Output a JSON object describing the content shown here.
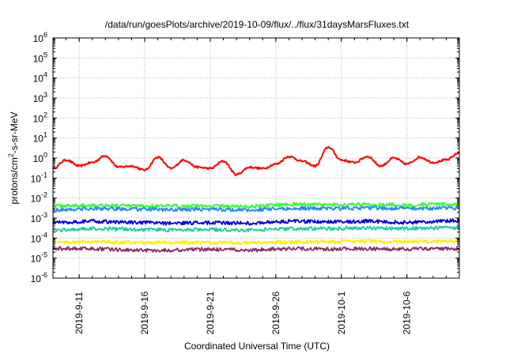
{
  "chart_data": {
    "type": "line",
    "title": "/data/run/goesPlots/archive/2019-10-09/flux/../flux/31daysMarsFluxes.txt",
    "xlabel": "Coordinated Universal Time (UTC)",
    "ylabel": "protons/cm²-s-sr-MeV",
    "ylabel_parts": {
      "prefix": "protons/cm",
      "sup": "2",
      "suffix": "-s-sr-MeV"
    },
    "yscale": "log",
    "ylim": [
      1e-06,
      1000000.0
    ],
    "xlim": [
      "2019-09-09",
      "2019-10-10"
    ],
    "grid": true,
    "y_ticks": [
      {
        "exp": -6,
        "base": "10",
        "sup": "-6"
      },
      {
        "exp": -5,
        "base": "10",
        "sup": "-5"
      },
      {
        "exp": -4,
        "base": "10",
        "sup": "-4"
      },
      {
        "exp": -3,
        "base": "10",
        "sup": "-3"
      },
      {
        "exp": -2,
        "base": "10",
        "sup": "-2"
      },
      {
        "exp": -1,
        "base": "10",
        "sup": "-1"
      },
      {
        "exp": 0,
        "base": "10",
        "sup": "0"
      },
      {
        "exp": 1,
        "base": "10",
        "sup": "1"
      },
      {
        "exp": 2,
        "base": "10",
        "sup": "2"
      },
      {
        "exp": 3,
        "base": "10",
        "sup": "3"
      },
      {
        "exp": 4,
        "base": "10",
        "sup": "4"
      },
      {
        "exp": 5,
        "base": "10",
        "sup": "5"
      },
      {
        "exp": 6,
        "base": "10",
        "sup": "6"
      }
    ],
    "x_ticks": [
      {
        "date": "2019-09-11",
        "label": "2019-9-11"
      },
      {
        "date": "2019-09-16",
        "label": "2019-9-16"
      },
      {
        "date": "2019-09-21",
        "label": "2019-9-21"
      },
      {
        "date": "2019-09-26",
        "label": "2019-9-26"
      },
      {
        "date": "2019-10-01",
        "label": "2019-10-1"
      },
      {
        "date": "2019-10-06",
        "label": "2019-10-6"
      }
    ],
    "series": [
      {
        "color": "#ff0000",
        "x": [
          "2019-09-09",
          "2019-09-10",
          "2019-09-11",
          "2019-09-12",
          "2019-09-13",
          "2019-09-14",
          "2019-09-15",
          "2019-09-16",
          "2019-09-17",
          "2019-09-18",
          "2019-09-19",
          "2019-09-20",
          "2019-09-21",
          "2019-09-22",
          "2019-09-23",
          "2019-09-24",
          "2019-09-25",
          "2019-09-26",
          "2019-09-27",
          "2019-09-28",
          "2019-09-29",
          "2019-09-30",
          "2019-10-01",
          "2019-10-02",
          "2019-10-03",
          "2019-10-04",
          "2019-10-05",
          "2019-10-06",
          "2019-10-07",
          "2019-10-08",
          "2019-10-09",
          "2019-10-10"
        ],
        "y": [
          0.3,
          0.8,
          0.4,
          0.6,
          1.3,
          0.35,
          0.4,
          0.25,
          1.1,
          0.3,
          0.8,
          0.35,
          0.3,
          0.7,
          0.15,
          0.35,
          0.3,
          0.5,
          1.2,
          0.7,
          0.4,
          3.5,
          0.8,
          0.6,
          1.2,
          0.4,
          1.0,
          0.5,
          1.1,
          0.6,
          0.8,
          1.8
        ]
      },
      {
        "color": "#33ff33",
        "x": [
          "2019-09-09",
          "2019-09-12",
          "2019-09-15",
          "2019-09-18",
          "2019-09-21",
          "2019-09-24",
          "2019-09-27",
          "2019-09-30",
          "2019-10-03",
          "2019-10-06",
          "2019-10-10"
        ],
        "y": [
          0.004,
          0.0045,
          0.004,
          0.004,
          0.0042,
          0.0038,
          0.005,
          0.0045,
          0.0048,
          0.0045,
          0.005
        ]
      },
      {
        "color": "#1e88ff",
        "x": [
          "2019-09-09",
          "2019-09-12",
          "2019-09-15",
          "2019-09-18",
          "2019-09-21",
          "2019-09-24",
          "2019-09-27",
          "2019-09-30",
          "2019-10-03",
          "2019-10-06",
          "2019-10-10"
        ],
        "y": [
          0.0025,
          0.003,
          0.0028,
          0.0026,
          0.0028,
          0.0025,
          0.003,
          0.003,
          0.0032,
          0.003,
          0.0032
        ]
      },
      {
        "color": "#0000dd",
        "x": [
          "2019-09-09",
          "2019-09-12",
          "2019-09-15",
          "2019-09-18",
          "2019-09-21",
          "2019-09-24",
          "2019-09-27",
          "2019-09-30",
          "2019-10-03",
          "2019-10-06",
          "2019-10-10"
        ],
        "y": [
          0.0006,
          0.0007,
          0.0006,
          0.00055,
          0.0006,
          0.00055,
          0.0007,
          0.00065,
          0.0007,
          0.0006,
          0.00075
        ]
      },
      {
        "color": "#20c9a0",
        "x": [
          "2019-09-09",
          "2019-09-12",
          "2019-09-15",
          "2019-09-18",
          "2019-09-21",
          "2019-09-24",
          "2019-09-27",
          "2019-09-30",
          "2019-10-03",
          "2019-10-06",
          "2019-10-10"
        ],
        "y": [
          0.00025,
          0.0003,
          0.00028,
          0.00025,
          0.00027,
          0.00025,
          0.0003,
          0.0003,
          0.00032,
          0.0003,
          0.00033
        ]
      },
      {
        "color": "#ffee00",
        "x": [
          "2019-09-09",
          "2019-09-12",
          "2019-09-15",
          "2019-09-18",
          "2019-09-21",
          "2019-09-24",
          "2019-09-27",
          "2019-09-30",
          "2019-10-03",
          "2019-10-06",
          "2019-10-10"
        ],
        "y": [
          6e-05,
          6.5e-05,
          6e-05,
          6e-05,
          6e-05,
          5.8e-05,
          6.5e-05,
          6.5e-05,
          7e-05,
          6.5e-05,
          7e-05
        ]
      },
      {
        "color": "#8b2a6a",
        "x": [
          "2019-09-09",
          "2019-09-12",
          "2019-09-15",
          "2019-09-18",
          "2019-09-21",
          "2019-09-24",
          "2019-09-27",
          "2019-09-30",
          "2019-10-03",
          "2019-10-06",
          "2019-10-10"
        ],
        "y": [
          3e-05,
          3e-05,
          2.5e-05,
          2.5e-05,
          2.8e-05,
          2.5e-05,
          3e-05,
          2.8e-05,
          3e-05,
          2.8e-05,
          3e-05
        ]
      }
    ]
  }
}
